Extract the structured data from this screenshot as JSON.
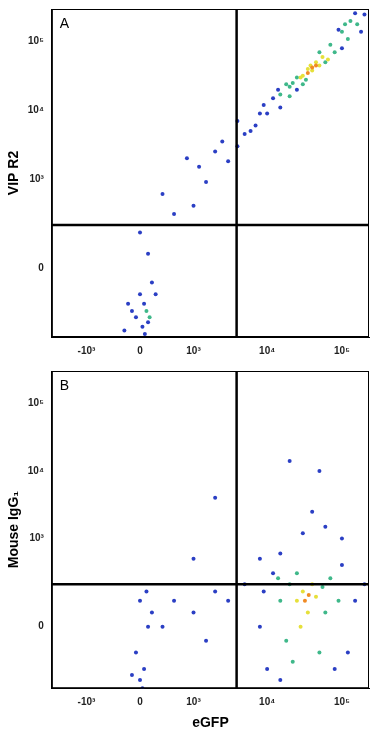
{
  "chart_data": [
    {
      "type": "scatter",
      "panel_label": "A",
      "y_label": "VIP R2",
      "log": true,
      "grid": false,
      "xlim": [
        -3000,
        230000
      ],
      "ylim": [
        -500,
        300000
      ],
      "xticks": [
        {
          "value": -1000,
          "label": "-10³"
        },
        0,
        {
          "value": 1000,
          "label": "10³"
        },
        {
          "value": 10000,
          "label": "10⁴"
        },
        {
          "value": 100000,
          "label": "10⁵"
        }
      ],
      "yticks": [
        0,
        {
          "value": 1000,
          "label": "10³"
        },
        {
          "value": 10000,
          "label": "10⁴"
        },
        {
          "value": 100000,
          "label": "10⁵"
        }
      ],
      "quadrant_x": 3900,
      "quadrant_y": 200,
      "x": [
        -200,
        -100,
        50,
        100,
        0,
        150,
        -50,
        80,
        200,
        30,
        100,
        0,
        -150,
        60,
        120,
        500,
        300,
        1000,
        1500,
        2000,
        3000,
        2500,
        4000,
        5000,
        6000,
        1200,
        800,
        4000,
        7000,
        8000,
        10000,
        12000,
        9000,
        15000,
        200000,
        180000,
        150000,
        100000,
        90000,
        15000,
        20000,
        18000,
        25000,
        30000,
        70000,
        80000,
        100000,
        120000,
        60000,
        22000,
        110000,
        30000,
        35000,
        40000,
        45000,
        50000,
        38000,
        55000,
        28000,
        40000,
        35000,
        45000,
        14000,
        25000,
        130000,
        160000,
        50000,
        65000,
        33000,
        20000
      ],
      "values": [
        -400,
        -200,
        -150,
        -300,
        -100,
        -50,
        -250,
        -200,
        -100,
        -350,
        50,
        150,
        -150,
        -450,
        -250,
        300,
        600,
        400,
        900,
        2500,
        1800,
        3500,
        3000,
        4500,
        5000,
        1500,
        2000,
        7000,
        6000,
        9000,
        9000,
        15000,
        12000,
        11000,
        250000,
        140000,
        260000,
        80000,
        150000,
        17000,
        16000,
        24000,
        30000,
        24000,
        90000,
        70000,
        140000,
        110000,
        50000,
        25000,
        180000,
        32000,
        40000,
        38000,
        50000,
        45000,
        45000,
        60000,
        30000,
        42000,
        35000,
        45000,
        20000,
        20000,
        200000,
        180000,
        70000,
        55000,
        28000,
        22000
      ],
      "colors": [
        "#2b3fc4",
        "#2b3fc4",
        "#2b3fc4",
        "#2b3fc4",
        "#2b3fc4",
        "#2b3fc4",
        "#2b3fc4",
        "#3fb88a",
        "#2b3fc4",
        "#2b3fc4",
        "#2b3fc4",
        "#2b3fc4",
        "#2b3fc4",
        "#2b3fc4",
        "#3fb88a",
        "#2b3fc4",
        "#2b3fc4",
        "#2b3fc4",
        "#2b3fc4",
        "#2b3fc4",
        "#2b3fc4",
        "#2b3fc4",
        "#2b3fc4",
        "#2b3fc4",
        "#2b3fc4",
        "#2b3fc4",
        "#2b3fc4",
        "#2b3fc4",
        "#2b3fc4",
        "#2b3fc4",
        "#2b3fc4",
        "#2b3fc4",
        "#2b3fc4",
        "#2b3fc4",
        "#2b3fc4",
        "#2b3fc4",
        "#2b3fc4",
        "#2b3fc4",
        "#2b3fc4",
        "#3fb88a",
        "#3fb88a",
        "#3fb88a",
        "#3fb88a",
        "#3fb88a",
        "#3fb88a",
        "#3fb88a",
        "#3fb88a",
        "#3fb88a",
        "#3fb88a",
        "#3fb88a",
        "#3fb88a",
        "#e6e03a",
        "#e6e03a",
        "#e6e03a",
        "#e6e03a",
        "#e6e03a",
        "#e6e03a",
        "#e6e03a",
        "#e6e03a",
        "#f08a24",
        "#f08a24",
        "#f08a24",
        "#2b3fc4",
        "#2b3fc4",
        "#3fb88a",
        "#3fb88a",
        "#3fb88a",
        "#e6e03a",
        "#3fb88a",
        "#3fb88a"
      ]
    },
    {
      "type": "scatter",
      "panel_label": "B",
      "y_label": "Mouse IgG₁",
      "x_label": "eGFP",
      "log": true,
      "grid": false,
      "xlim": [
        -3000,
        230000
      ],
      "ylim": [
        -400,
        300000
      ],
      "xticks": [
        {
          "value": -1000,
          "label": "-10³"
        },
        0,
        {
          "value": 1000,
          "label": "10³"
        },
        {
          "value": 10000,
          "label": "10⁴"
        },
        {
          "value": 100000,
          "label": "10⁵"
        }
      ],
      "yticks": [
        0,
        {
          "value": 1000,
          "label": "10³"
        },
        {
          "value": 10000,
          "label": "10⁴"
        },
        {
          "value": 100000,
          "label": "10⁵"
        }
      ],
      "quadrant_x": 3900,
      "quadrant_y": 200,
      "x": [
        0,
        50,
        -50,
        100,
        0,
        -100,
        30,
        80,
        150,
        500,
        1000,
        2000,
        300,
        1500,
        3000,
        5000,
        20000,
        50000,
        30000,
        60000,
        15000,
        8000,
        100000,
        40000,
        2000,
        1000,
        8000,
        10000,
        12000,
        150000,
        120000,
        200000,
        9000,
        100000,
        15000,
        80000,
        15000,
        18000,
        20000,
        60000,
        70000,
        50000,
        25000,
        90000,
        14000,
        25000,
        30000,
        35000,
        40000,
        28000,
        45000,
        32000,
        36000,
        22000,
        55000
      ],
      "values": [
        -300,
        -200,
        -100,
        0,
        100,
        -250,
        -400,
        150,
        50,
        100,
        50,
        150,
        0,
        -50,
        100,
        200,
        14000,
        10000,
        1200,
        1500,
        600,
        500,
        1000,
        2500,
        4000,
        500,
        0,
        -200,
        300,
        100,
        -100,
        200,
        150,
        400,
        -300,
        -200,
        100,
        -50,
        200,
        50,
        250,
        -100,
        300,
        100,
        250,
        100,
        150,
        50,
        200,
        0,
        120,
        100,
        130,
        -150,
        180
      ],
      "colors": [
        "#2b3fc4",
        "#2b3fc4",
        "#2b3fc4",
        "#2b3fc4",
        "#2b3fc4",
        "#2b3fc4",
        "#2b3fc4",
        "#2b3fc4",
        "#2b3fc4",
        "#2b3fc4",
        "#2b3fc4",
        "#2b3fc4",
        "#2b3fc4",
        "#2b3fc4",
        "#2b3fc4",
        "#2b3fc4",
        "#2b3fc4",
        "#2b3fc4",
        "#2b3fc4",
        "#2b3fc4",
        "#2b3fc4",
        "#2b3fc4",
        "#2b3fc4",
        "#2b3fc4",
        "#2b3fc4",
        "#2b3fc4",
        "#2b3fc4",
        "#2b3fc4",
        "#2b3fc4",
        "#2b3fc4",
        "#2b3fc4",
        "#2b3fc4",
        "#2b3fc4",
        "#2b3fc4",
        "#2b3fc4",
        "#2b3fc4",
        "#3fb88a",
        "#3fb88a",
        "#3fb88a",
        "#3fb88a",
        "#3fb88a",
        "#3fb88a",
        "#3fb88a",
        "#3fb88a",
        "#3fb88a",
        "#e6e03a",
        "#e6e03a",
        "#e6e03a",
        "#e6e03a",
        "#e6e03a",
        "#e6e03a",
        "#f08a24",
        "#f08a24",
        "#3fb88a",
        "#3fb88a"
      ]
    }
  ]
}
